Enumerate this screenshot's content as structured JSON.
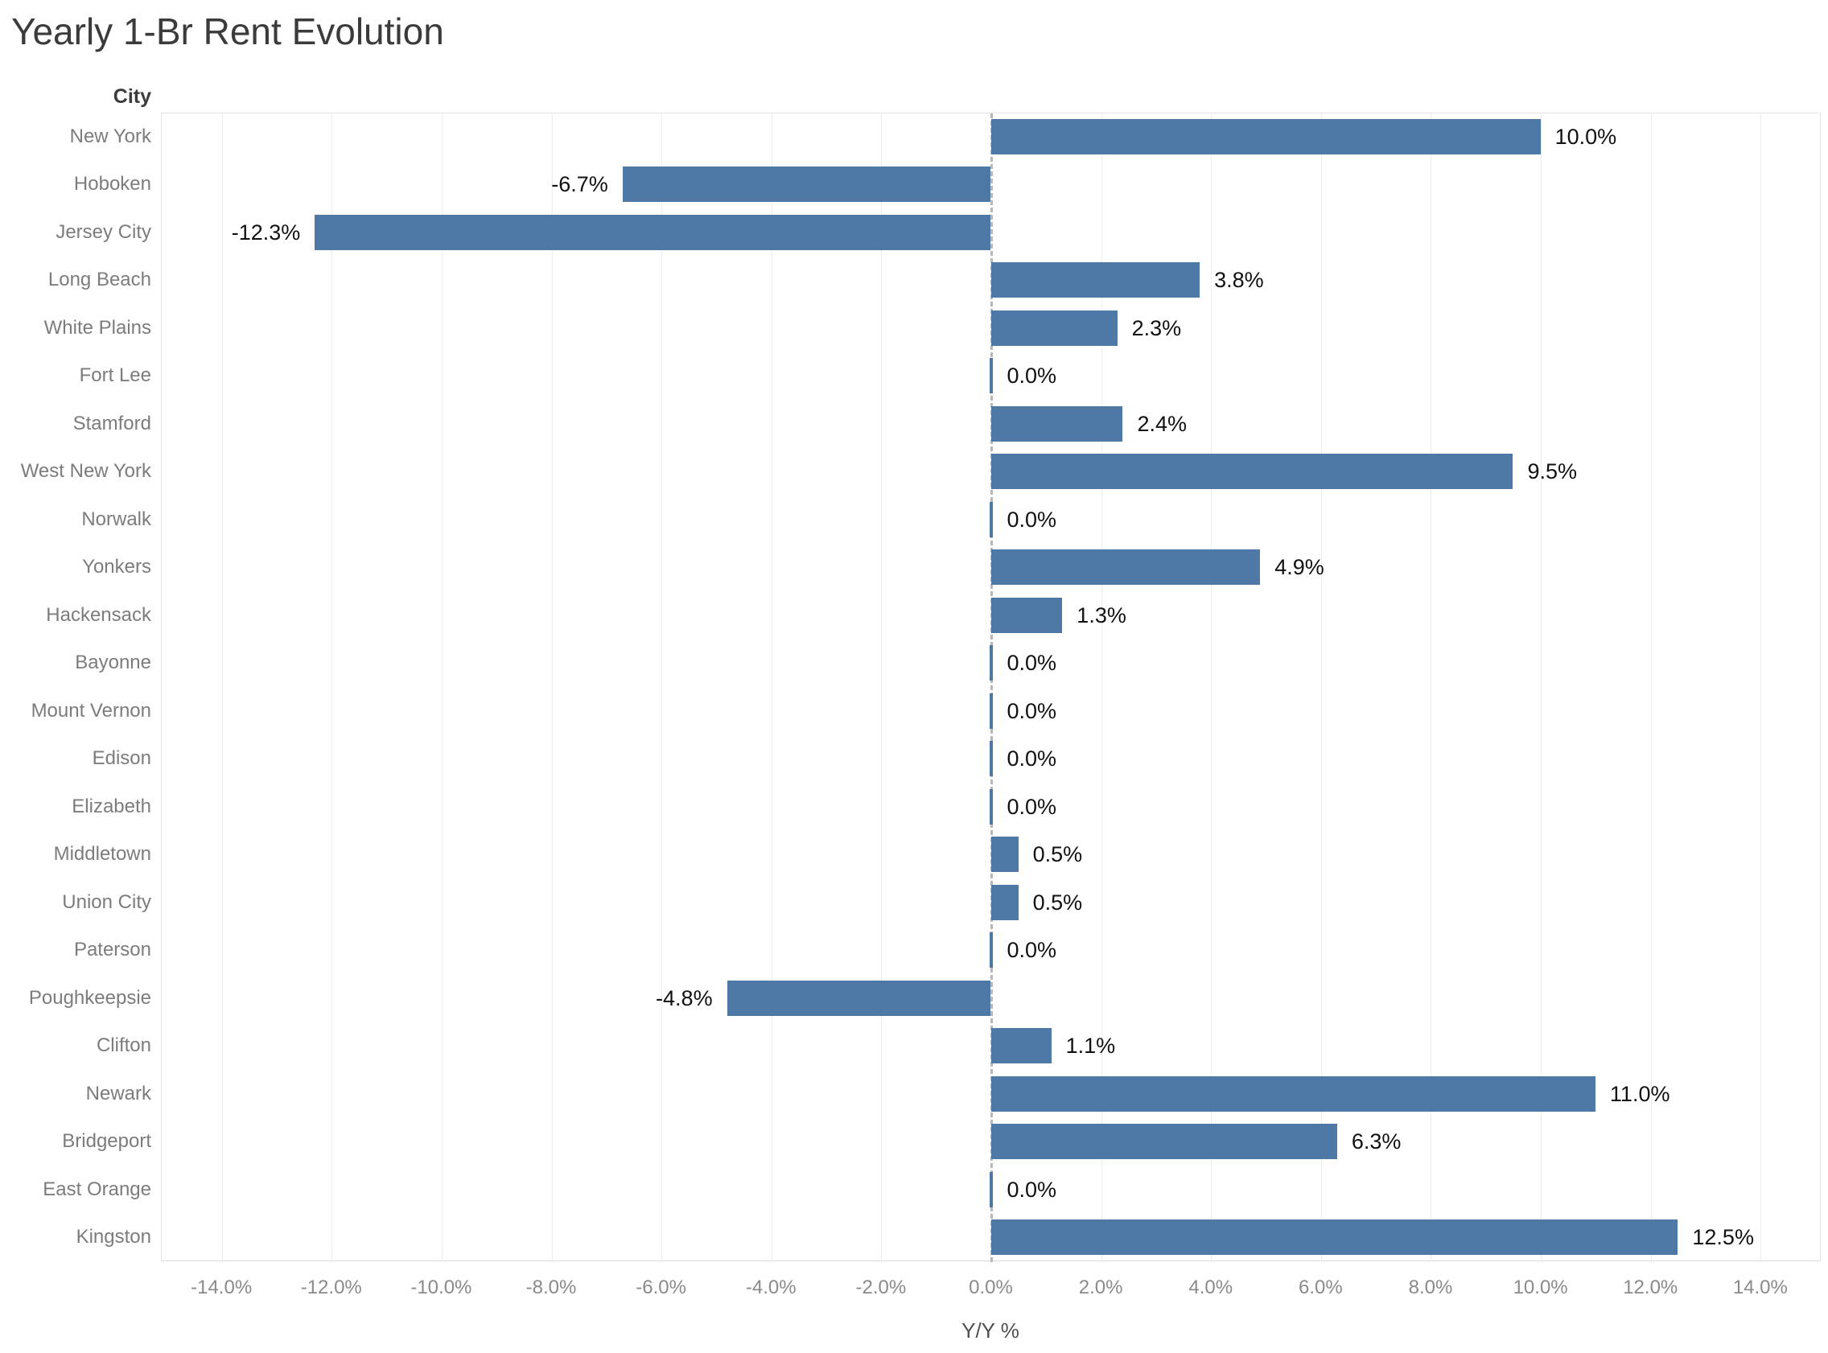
{
  "title": "Yearly 1-Br Rent Evolution",
  "column_header": "City",
  "chart_data": {
    "type": "bar",
    "orientation": "horizontal",
    "title": "Yearly 1-Br Rent Evolution",
    "xlabel": "Y/Y %",
    "ylabel": "City",
    "categories": [
      "New York",
      "Hoboken",
      "Jersey City",
      "Long Beach",
      "White Plains",
      "Fort Lee",
      "Stamford",
      "West New York",
      "Norwalk",
      "Yonkers",
      "Hackensack",
      "Bayonne",
      "Mount Vernon",
      "Edison",
      "Elizabeth",
      "Middletown",
      "Union City",
      "Paterson",
      "Poughkeepsie",
      "Clifton",
      "Newark",
      "Bridgeport",
      "East Orange",
      "Kingston"
    ],
    "values": [
      10.0,
      -6.7,
      -12.3,
      3.8,
      2.3,
      0.0,
      2.4,
      9.5,
      0.0,
      4.9,
      1.3,
      0.0,
      0.0,
      0.0,
      0.0,
      0.5,
      0.5,
      0.0,
      -4.8,
      1.1,
      11.0,
      6.3,
      0.0,
      12.5
    ],
    "value_labels": [
      "10.0%",
      "-6.7%",
      "-12.3%",
      "3.8%",
      "2.3%",
      "0.0%",
      "2.4%",
      "9.5%",
      "0.0%",
      "4.9%",
      "1.3%",
      "0.0%",
      "0.0%",
      "0.0%",
      "0.0%",
      "0.5%",
      "0.5%",
      "0.0%",
      "-4.8%",
      "1.1%",
      "11.0%",
      "6.3%",
      "0.0%",
      "12.5%"
    ],
    "xlim": [
      -15.1,
      15.1
    ],
    "xticks": [
      -14,
      -12,
      -10,
      -8,
      -6,
      -4,
      -2,
      0,
      2,
      4,
      6,
      8,
      10,
      12,
      14
    ],
    "xtick_labels": [
      "-14.0%",
      "-12.0%",
      "-10.0%",
      "-8.0%",
      "-6.0%",
      "-4.0%",
      "-2.0%",
      "0.0%",
      "2.0%",
      "4.0%",
      "6.0%",
      "8.0%",
      "10.0%",
      "12.0%",
      "14.0%"
    ],
    "grid": "vertical",
    "zero_line": "dashed",
    "legend": "none",
    "bar_color": "#4e79a7",
    "value_label_color": "#111111",
    "axis_text_color": "#8a8a8a",
    "category_text_color": "#7c7c7c"
  }
}
